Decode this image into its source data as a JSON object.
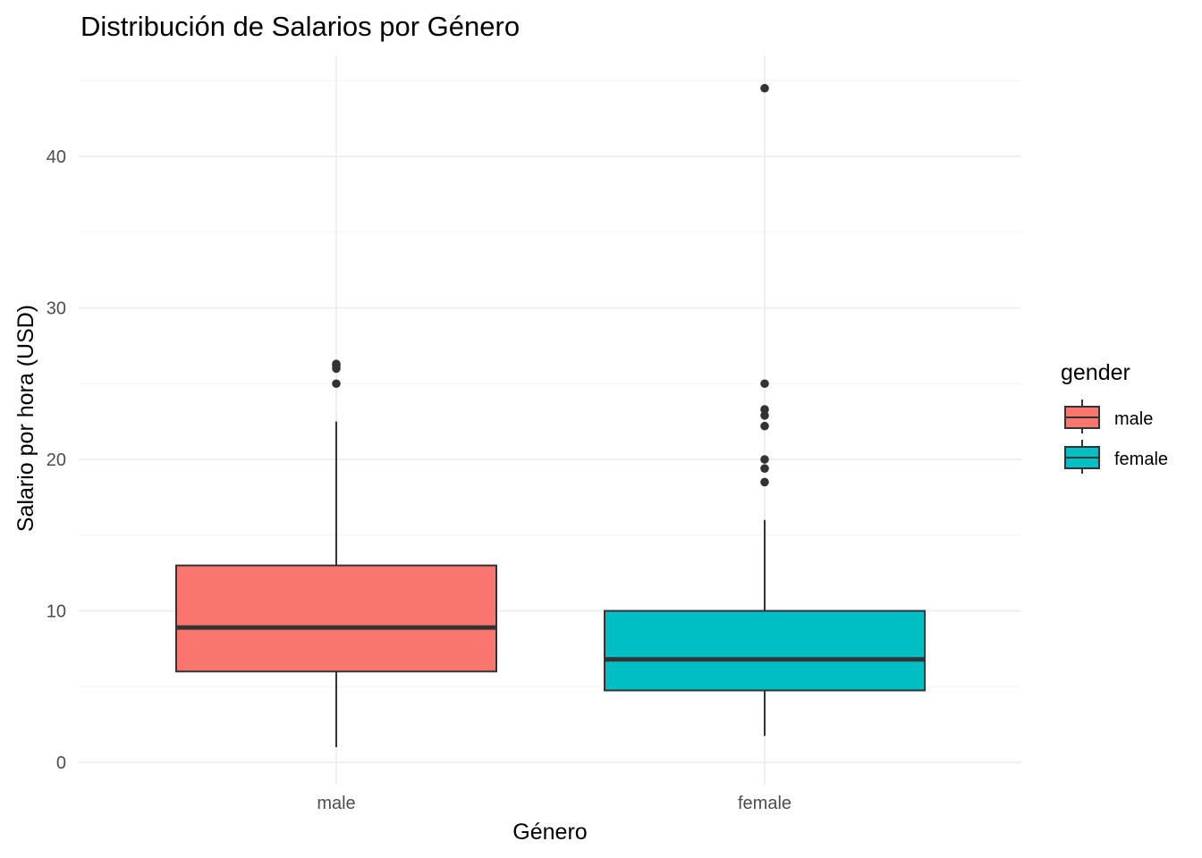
{
  "chart_data": {
    "type": "boxplot",
    "title": "Distribución de Salarios por Género",
    "xlabel": "Género",
    "ylabel": "Salario por hora (USD)",
    "ylim": [
      -1.5,
      46
    ],
    "y_ticks": [
      0,
      10,
      20,
      30,
      40
    ],
    "y_tick_labels": [
      "0",
      "10",
      "20",
      "30",
      "40"
    ],
    "grid": true,
    "legend": {
      "title": "gender",
      "placement": "right"
    },
    "categories": [
      "male",
      "female"
    ],
    "series": [
      {
        "name": "male",
        "color": "#F8766D",
        "min": 1.0,
        "q1": 6.0,
        "median": 8.9,
        "q3": 13.0,
        "max": 22.5,
        "outliers": [
          25.0,
          26.0,
          26.2,
          26.3
        ]
      },
      {
        "name": "female",
        "color": "#00BFC4",
        "min": 1.75,
        "q1": 4.75,
        "median": 6.8,
        "q3": 10.0,
        "max": 16.0,
        "outliers": [
          18.5,
          19.4,
          20.0,
          22.2,
          22.9,
          23.3,
          25.0,
          44.5
        ]
      }
    ]
  }
}
